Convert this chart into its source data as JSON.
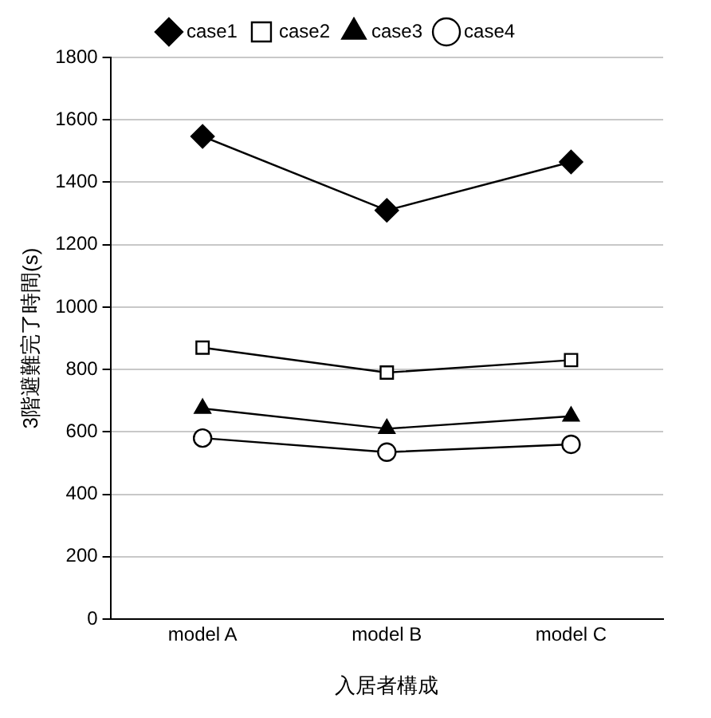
{
  "chart_data": {
    "type": "line",
    "xlabel": "入居者構成",
    "ylabel": "3階避難完了時間(s)",
    "categories": [
      "model A",
      "model B",
      "model C"
    ],
    "series": [
      {
        "name": "case1",
        "color": "#000000",
        "marker": "diamond",
        "values": [
          1547,
          1310,
          1465
        ]
      },
      {
        "name": "case2",
        "color": "#000000",
        "marker": "square",
        "values": [
          870,
          790,
          830
        ]
      },
      {
        "name": "case3",
        "color": "#000000",
        "marker": "triangle",
        "values": [
          675,
          610,
          650
        ]
      },
      {
        "name": "case4",
        "color": "#000000",
        "marker": "circle",
        "values": [
          580,
          535,
          560
        ]
      }
    ],
    "ylim": [
      0,
      1800
    ],
    "yticks": [
      0,
      200,
      400,
      600,
      800,
      1000,
      1200,
      1400,
      1600,
      1800
    ],
    "grid": "y",
    "legend": "top"
  }
}
